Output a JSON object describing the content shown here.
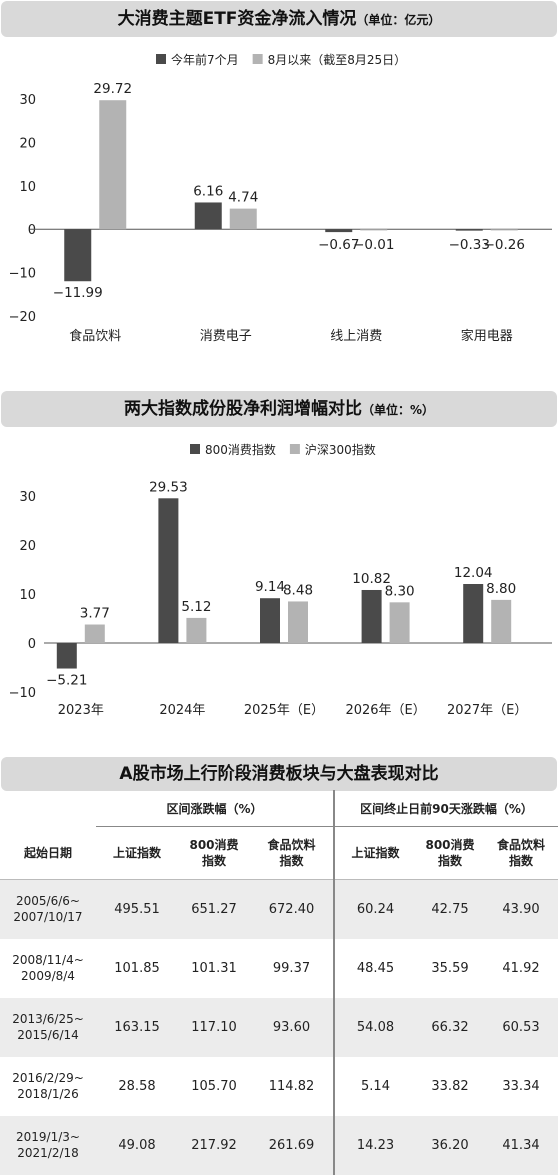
{
  "chart1": {
    "title": "大消费主题ETF资金净流入情况",
    "unit": "（单位：亿元）"
  },
  "chart2": {
    "title": "两大指数成份股净利润增幅对比",
    "unit": "（单位：%）"
  },
  "table": {
    "title": "A股市场上行阶段消费板块与大盘表现对比",
    "group1": "区间涨跌幅（%）",
    "group2": "区间终止日前90天涨跌幅（%）",
    "col_date": "起始日期",
    "cols": [
      "上证指数",
      "800消费\n指数",
      "食品饮料\n指数",
      "上证指数",
      "800消费\n指数",
      "食品饮料\n指数"
    ],
    "rows": [
      {
        "date": "2005/6/6~\n2007/10/17",
        "values": [
          "495.51",
          "651.27",
          "672.40",
          "60.24",
          "42.75",
          "43.90"
        ]
      },
      {
        "date": "2008/11/4~\n2009/8/4",
        "values": [
          "101.85",
          "101.31",
          "99.37",
          "48.45",
          "35.59",
          "41.92"
        ]
      },
      {
        "date": "2013/6/25~\n2015/6/14",
        "values": [
          "163.15",
          "117.10",
          "93.60",
          "54.08",
          "66.32",
          "60.53"
        ]
      },
      {
        "date": "2016/2/29~\n2018/1/26",
        "values": [
          "28.58",
          "105.70",
          "114.82",
          "5.14",
          "33.82",
          "33.34"
        ]
      },
      {
        "date": "2019/1/3~\n2021/2/18",
        "values": [
          "49.08",
          "217.92",
          "261.69",
          "14.23",
          "36.20",
          "41.34"
        ]
      }
    ]
  },
  "chart_data": [
    {
      "type": "bar",
      "title": "大消费主题ETF资金净流入情况",
      "ylabel": "",
      "categories": [
        "食品饮料",
        "消费电子",
        "线上消费",
        "家用电器"
      ],
      "series": [
        {
          "name": "今年前7个月",
          "values": [
            -11.99,
            6.16,
            -0.67,
            -0.33
          ],
          "color": "#4a4a4a"
        },
        {
          "name": "8月以来（截至8月25日）",
          "values": [
            29.72,
            4.74,
            -0.01,
            -0.26
          ],
          "color": "#b3b3b3"
        }
      ],
      "ylim": [
        -20,
        30
      ],
      "yticks": [
        -20,
        -10,
        0,
        10,
        20,
        30
      ],
      "grid": false,
      "legend": "top-center"
    },
    {
      "type": "bar",
      "title": "两大指数成份股净利润增幅对比",
      "ylabel": "",
      "categories": [
        "2023年",
        "2024年",
        "2025年（E）",
        "2026年（E）",
        "2027年（E）"
      ],
      "series": [
        {
          "name": "800消费指数",
          "values": [
            -5.21,
            29.53,
            9.14,
            10.82,
            12.04
          ],
          "color": "#4a4a4a"
        },
        {
          "name": "沪深300指数",
          "values": [
            3.77,
            5.12,
            8.48,
            8.3,
            8.8
          ],
          "color": "#b3b3b3"
        }
      ],
      "ylim": [
        -10,
        30
      ],
      "yticks": [
        -10,
        0,
        10,
        20,
        30
      ],
      "grid": false,
      "legend": "top-center"
    }
  ]
}
